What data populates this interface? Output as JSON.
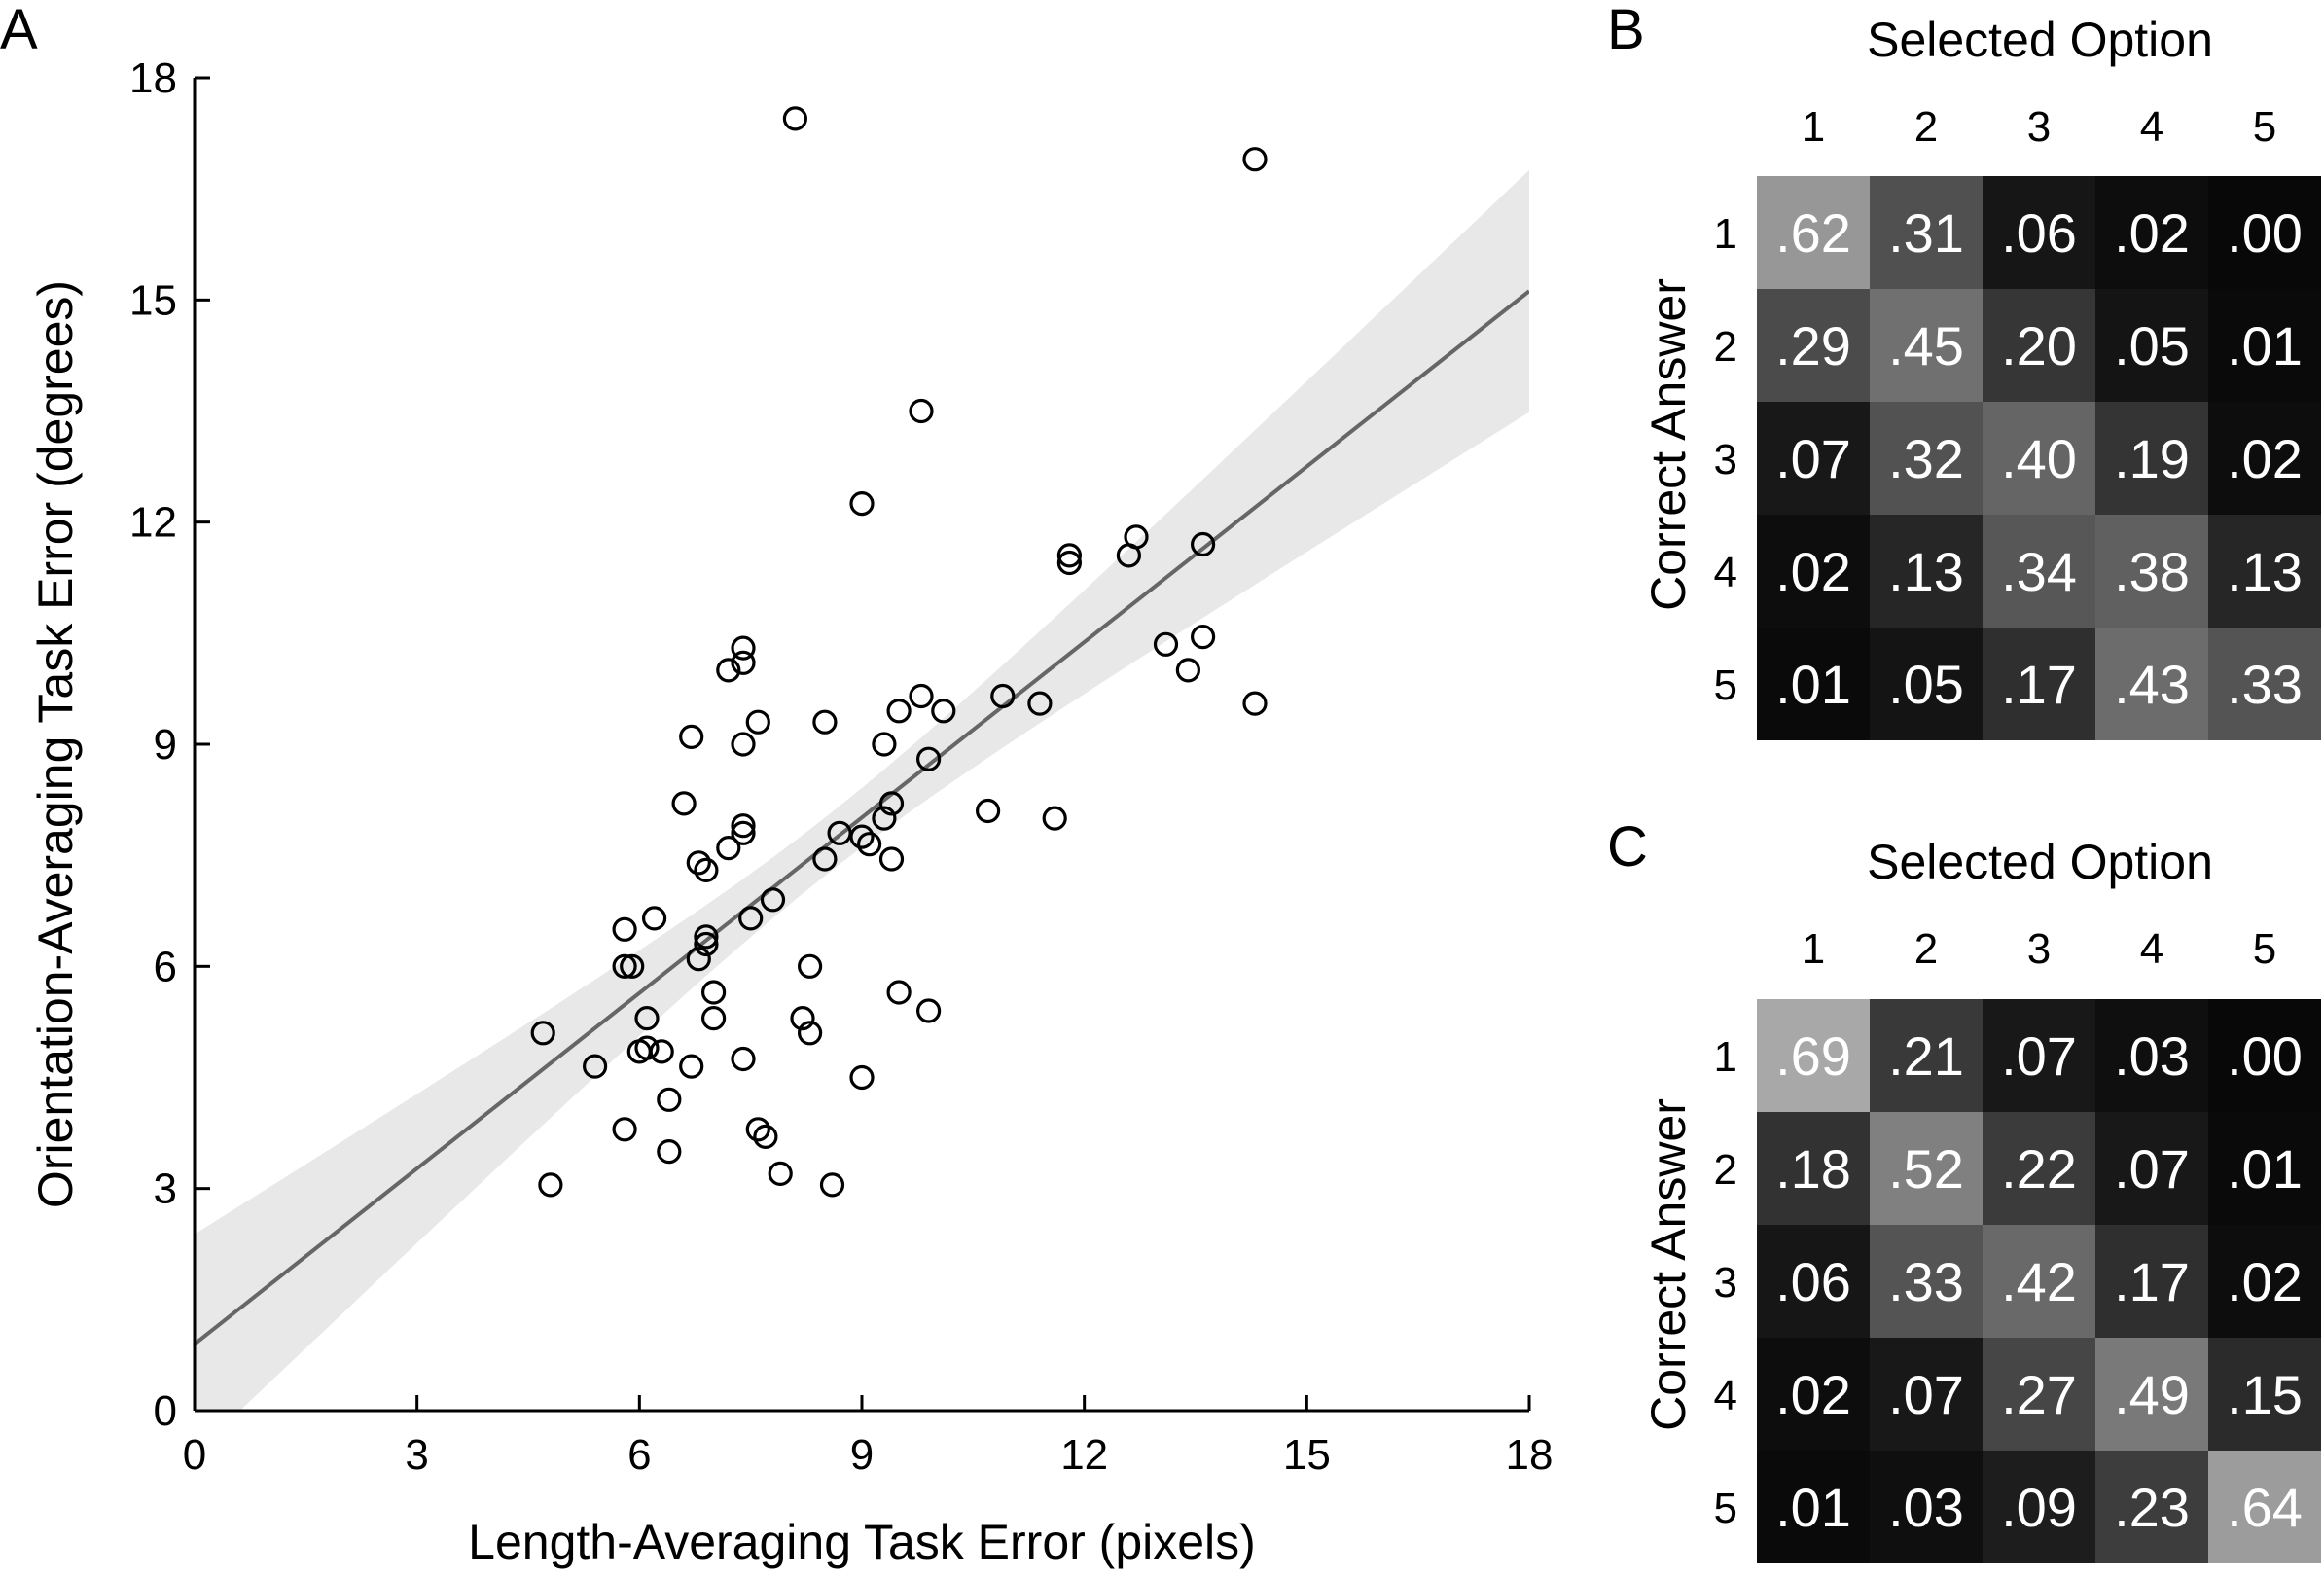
{
  "chart_data": [
    {
      "panel_label": "A",
      "type": "scatter",
      "xlabel": "Length-Averaging Task Error (pixels)",
      "ylabel": "Orientation-Averaging Task Error (degrees)",
      "xlim": [
        0,
        18
      ],
      "ylim": [
        0,
        18
      ],
      "xticks": [
        "0",
        "3",
        "6",
        "9",
        "12",
        "15",
        "18"
      ],
      "yticks": [
        "0",
        "3",
        "6",
        "9",
        "12",
        "15",
        "18"
      ],
      "marker": "open-circle",
      "fit_line": {
        "intercept": 0.9,
        "slope": 0.79
      },
      "confidence_band": true,
      "colors": {
        "points": "#000000",
        "fit_line": "#666666",
        "band": "#e8e8e8"
      },
      "points": [
        [
          8.1,
          17.45
        ],
        [
          14.3,
          16.9
        ],
        [
          9.8,
          13.5
        ],
        [
          9.0,
          12.25
        ],
        [
          12.7,
          11.8
        ],
        [
          11.8,
          11.55
        ],
        [
          11.8,
          11.45
        ],
        [
          12.6,
          11.55
        ],
        [
          13.6,
          11.7
        ],
        [
          7.4,
          10.3
        ],
        [
          7.4,
          10.1
        ],
        [
          7.2,
          10.0
        ],
        [
          13.1,
          10.35
        ],
        [
          13.6,
          10.45
        ],
        [
          13.4,
          10.0
        ],
        [
          6.7,
          9.1
        ],
        [
          7.4,
          9.0
        ],
        [
          7.6,
          9.3
        ],
        [
          8.5,
          9.3
        ],
        [
          9.3,
          9.0
        ],
        [
          9.5,
          9.45
        ],
        [
          9.8,
          9.65
        ],
        [
          10.1,
          9.45
        ],
        [
          10.9,
          9.65
        ],
        [
          11.4,
          9.55
        ],
        [
          14.3,
          9.55
        ],
        [
          9.9,
          8.8
        ],
        [
          6.6,
          8.2
        ],
        [
          9.4,
          8.2
        ],
        [
          9.3,
          8.0
        ],
        [
          10.7,
          8.1
        ],
        [
          11.6,
          8.0
        ],
        [
          7.4,
          7.9
        ],
        [
          7.4,
          7.8
        ],
        [
          7.2,
          7.6
        ],
        [
          8.7,
          7.8
        ],
        [
          9.0,
          7.75
        ],
        [
          9.1,
          7.65
        ],
        [
          6.8,
          7.4
        ],
        [
          6.9,
          7.3
        ],
        [
          8.5,
          7.45
        ],
        [
          9.4,
          7.45
        ],
        [
          7.8,
          6.9
        ],
        [
          7.5,
          6.65
        ],
        [
          6.2,
          6.65
        ],
        [
          5.8,
          6.5
        ],
        [
          6.9,
          6.4
        ],
        [
          6.9,
          6.3
        ],
        [
          6.8,
          6.1
        ],
        [
          5.8,
          6.0
        ],
        [
          5.9,
          6.0
        ],
        [
          8.3,
          6.0
        ],
        [
          7.0,
          5.65
        ],
        [
          9.5,
          5.65
        ],
        [
          9.9,
          5.4
        ],
        [
          6.1,
          5.3
        ],
        [
          7.0,
          5.3
        ],
        [
          8.2,
          5.3
        ],
        [
          4.7,
          5.1
        ],
        [
          8.3,
          5.1
        ],
        [
          6.1,
          4.9
        ],
        [
          6.0,
          4.85
        ],
        [
          6.3,
          4.85
        ],
        [
          5.4,
          4.65
        ],
        [
          6.7,
          4.65
        ],
        [
          7.4,
          4.75
        ],
        [
          9.0,
          4.5
        ],
        [
          6.4,
          4.2
        ],
        [
          5.8,
          3.8
        ],
        [
          7.6,
          3.8
        ],
        [
          7.7,
          3.7
        ],
        [
          6.4,
          3.5
        ],
        [
          7.9,
          3.2
        ],
        [
          4.8,
          3.05
        ],
        [
          8.6,
          3.05
        ]
      ]
    },
    {
      "panel_label": "B",
      "type": "heatmap",
      "title": "Selected Option",
      "ylabel": "Correct Answer",
      "x_categories": [
        "1",
        "2",
        "3",
        "4",
        "5"
      ],
      "y_categories": [
        "1",
        "2",
        "3",
        "4",
        "5"
      ],
      "values": [
        [
          0.62,
          0.31,
          0.06,
          0.02,
          0.0
        ],
        [
          0.29,
          0.45,
          0.2,
          0.05,
          0.01
        ],
        [
          0.07,
          0.32,
          0.4,
          0.19,
          0.02
        ],
        [
          0.02,
          0.13,
          0.34,
          0.38,
          0.13
        ],
        [
          0.01,
          0.05,
          0.17,
          0.43,
          0.33
        ]
      ],
      "labels": [
        [
          ".62",
          ".31",
          ".06",
          ".02",
          ".00"
        ],
        [
          ".29",
          ".45",
          ".20",
          ".05",
          ".01"
        ],
        [
          ".07",
          ".32",
          ".40",
          ".19",
          ".02"
        ],
        [
          ".02",
          ".13",
          ".34",
          ".38",
          ".13"
        ],
        [
          ".01",
          ".05",
          ".17",
          ".43",
          ".33"
        ]
      ],
      "colormap": "grayscale"
    },
    {
      "panel_label": "C",
      "type": "heatmap",
      "title": "Selected Option",
      "ylabel": "Correct Answer",
      "x_categories": [
        "1",
        "2",
        "3",
        "4",
        "5"
      ],
      "y_categories": [
        "1",
        "2",
        "3",
        "4",
        "5"
      ],
      "values": [
        [
          0.69,
          0.21,
          0.07,
          0.03,
          0.0
        ],
        [
          0.18,
          0.52,
          0.22,
          0.07,
          0.01
        ],
        [
          0.06,
          0.33,
          0.42,
          0.17,
          0.02
        ],
        [
          0.02,
          0.07,
          0.27,
          0.49,
          0.15
        ],
        [
          0.01,
          0.03,
          0.09,
          0.23,
          0.64
        ]
      ],
      "labels": [
        [
          ".69",
          ".21",
          ".07",
          ".03",
          ".00"
        ],
        [
          ".18",
          ".52",
          ".22",
          ".07",
          ".01"
        ],
        [
          ".06",
          ".33",
          ".42",
          ".17",
          ".02"
        ],
        [
          ".02",
          ".07",
          ".27",
          ".49",
          ".15"
        ],
        [
          ".01",
          ".03",
          ".09",
          ".23",
          ".64"
        ]
      ],
      "colormap": "grayscale"
    }
  ]
}
